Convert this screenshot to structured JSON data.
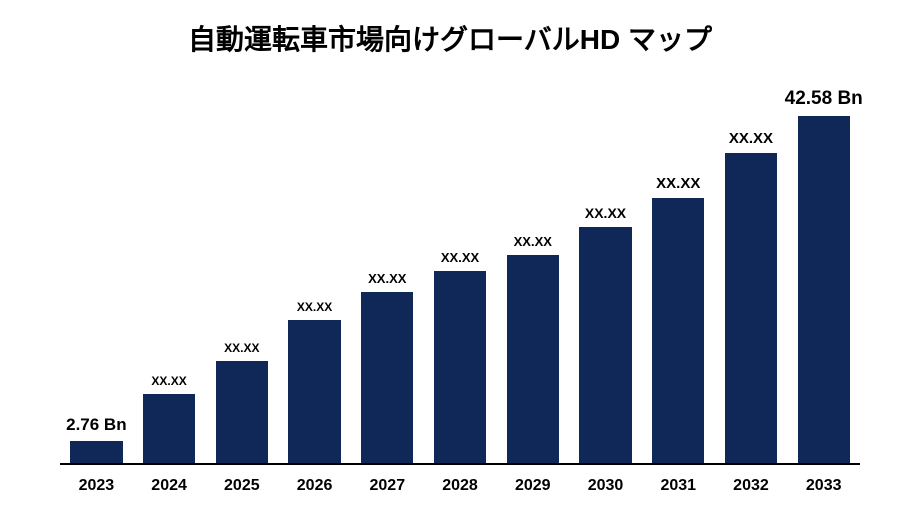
{
  "chart": {
    "type": "bar",
    "title": "自動運転車市場向けグローバルHD マップ",
    "title_fontsize": 28,
    "title_color": "#000000",
    "background_color": "#ffffff",
    "bar_color": "#0f2857",
    "axis_color": "#000000",
    "xlabel_fontsize": 16,
    "xlabel_color": "#000000",
    "value_label_color": "#000000",
    "bar_width_ratio": 0.72,
    "ymax": 46,
    "categories": [
      "2023",
      "2024",
      "2025",
      "2026",
      "2027",
      "2028",
      "2029",
      "2030",
      "2031",
      "2032",
      "2033"
    ],
    "values": [
      2.76,
      8.5,
      12.5,
      17.5,
      21.0,
      23.5,
      25.5,
      29.0,
      32.5,
      38.0,
      42.58
    ],
    "value_labels": [
      "2.76 Bn",
      "XX.XX",
      "XX.XX",
      "XX.XX",
      "XX.XX",
      "XX.XX",
      "XX.XX",
      "XX.XX",
      "XX.XX",
      "XX.XX",
      "42.58 Bn"
    ],
    "value_label_fontsizes": [
      17,
      12,
      12,
      12,
      13,
      13,
      13,
      14,
      15,
      15,
      19
    ]
  }
}
